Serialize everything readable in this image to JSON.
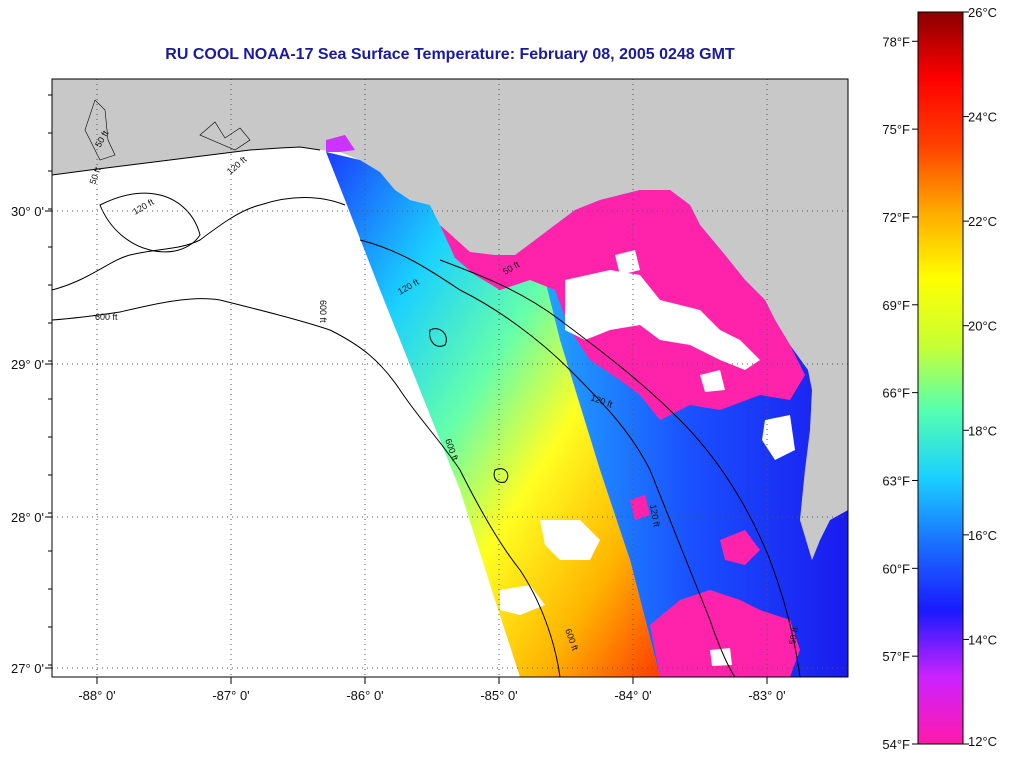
{
  "title": "RU COOL  NOAA-17  Sea Surface Temperature:  February 08, 2005 0248 GMT",
  "map": {
    "lon_ticks": [
      "-88° 0'",
      "-87° 0'",
      "-86° 0'",
      "-85° 0'",
      "-84° 0'",
      "-83° 0'"
    ],
    "lat_ticks": [
      "30° 0'",
      "29° 0'",
      "28° 0'",
      "27° 0'"
    ],
    "contour_labels": [
      "50 ft",
      "50 ft",
      "120 ft",
      "120 ft",
      "600 ft",
      "600 ft",
      "600 ft",
      "120 ft",
      "120 ft",
      "50 ft",
      "120 ft",
      "600 ft",
      "50 ft"
    ],
    "colors": {
      "land": "#c8c8c8",
      "no_data": "#ffffff",
      "grid": "#555555"
    }
  },
  "colorbar": {
    "celsius_labels": [
      "26°C",
      "24°C",
      "22°C",
      "20°C",
      "18°C",
      "16°C",
      "14°C",
      "12°C"
    ],
    "fahrenheit_labels": [
      "78°F",
      "75°F",
      "72°F",
      "69°F",
      "66°F",
      "63°F",
      "60°F",
      "57°F",
      "54°F"
    ],
    "range_c": [
      12,
      26
    ],
    "range_f": [
      54,
      79
    ],
    "gradient_stops": [
      "#ff1aaa",
      "#cc22ff",
      "#1a1aff",
      "#1a6fff",
      "#1ad0ff",
      "#55ffb0",
      "#c8ff33",
      "#ffff00",
      "#ffaa00",
      "#ff4000",
      "#ff0000",
      "#8a0000"
    ]
  }
}
